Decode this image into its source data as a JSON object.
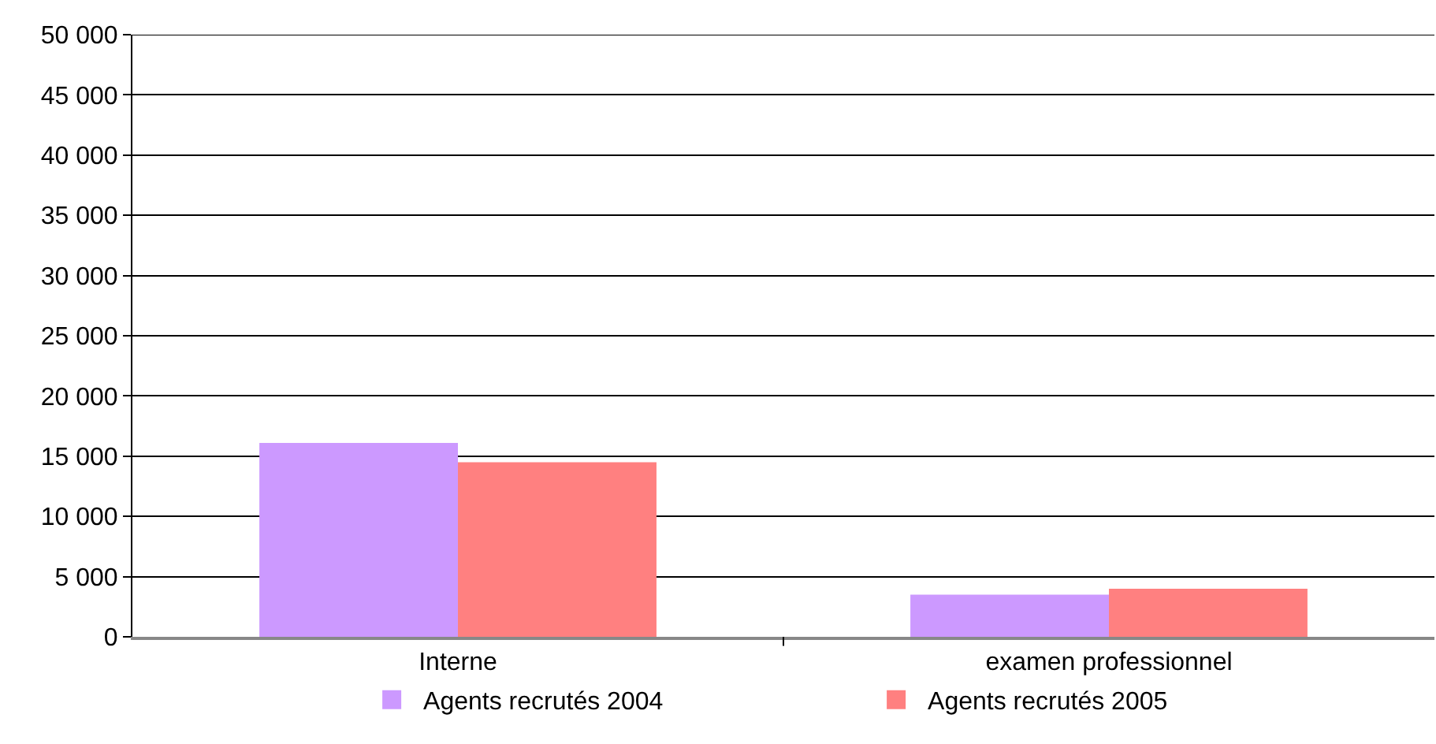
{
  "chart_data": {
    "type": "bar",
    "categories": [
      "Interne",
      "examen professionnel"
    ],
    "series": [
      {
        "name": "Agents recrutés 2004",
        "color": "#cc99ff",
        "values": [
          16100,
          3500
        ]
      },
      {
        "name": "Agents recrutés 2005",
        "color": "#ff8080",
        "values": [
          14500,
          4000
        ]
      }
    ],
    "ylim": [
      0,
      50000
    ],
    "yticks": [
      0,
      {
        "value": 5000,
        "label": "5 000"
      },
      {
        "value": 10000,
        "label": "10 000"
      },
      {
        "value": 15000,
        "label": "15 000"
      },
      {
        "value": 20000,
        "label": "20 000"
      },
      {
        "value": 25000,
        "label": "25 000"
      },
      {
        "value": 30000,
        "label": "30 000"
      },
      {
        "value": 35000,
        "label": "35 000"
      },
      {
        "value": 40000,
        "label": "40 000"
      },
      {
        "value": 45000,
        "label": "45 000"
      },
      {
        "value": 50000,
        "label": "50 000"
      }
    ],
    "grid": "y",
    "legend": "bottom"
  }
}
